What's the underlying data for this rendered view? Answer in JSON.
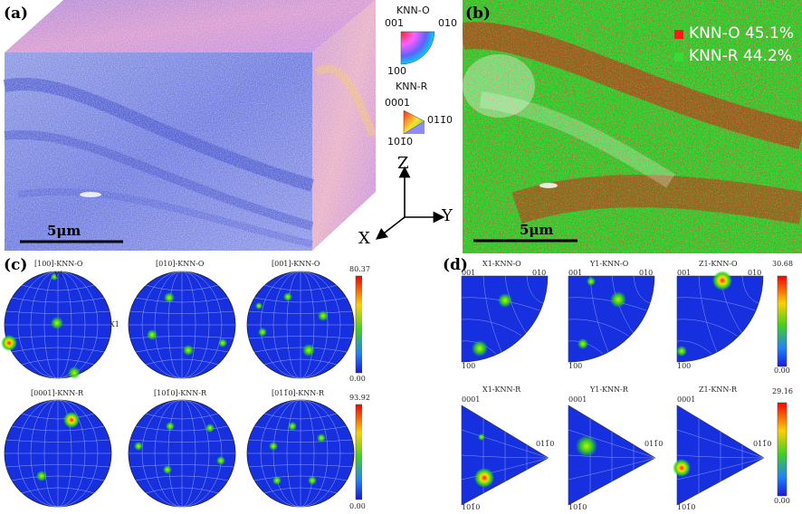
{
  "panel_labels": {
    "a": "(a)",
    "b": "(b)",
    "c": "(c)",
    "d": "(d)"
  },
  "panel_a": {
    "scale_bar": "5μm",
    "legend_o": {
      "title": "KNN-O",
      "corner_001": "001",
      "corner_010": "010",
      "corner_100": "100"
    },
    "legend_r": {
      "title": "KNN-R",
      "corner_0001": "0001",
      "corner_01": "011̄0",
      "corner_10": "101̄0"
    },
    "axes": {
      "z": "Z",
      "y": "Y",
      "x": "X"
    }
  },
  "panel_b": {
    "scale_bar": "5μm",
    "legend": [
      {
        "label": "KNN-O 45.1%",
        "color": "#ff1a1a"
      },
      {
        "label": "KNN-R 44.2%",
        "color": "#33dd33"
      }
    ]
  },
  "panel_c": {
    "row1": {
      "titles": [
        "[100]-KNN-O",
        "[010]-KNN-O",
        "[001]-KNN-O"
      ],
      "cb_max": "80.37",
      "cb_min": "0.00"
    },
    "row2": {
      "titles": [
        "[0001]-KNN-R",
        "[101̄0]-KNN-R",
        "[011̄0]-KNN-R"
      ],
      "cb_max": "93.92",
      "cb_min": "0.00"
    },
    "pole_labels": {
      "top": "Y1",
      "right": "X1"
    }
  },
  "panel_d": {
    "row1": {
      "titles": [
        "X1-KNN-O",
        "Y1-KNN-O",
        "Z1-KNN-O"
      ],
      "c1": "001",
      "c2": "010",
      "c3": "100",
      "cb_max": "30.68",
      "cb_min": "0.00"
    },
    "row2": {
      "titles": [
        "X1-KNN-R",
        "Y1-KNN-R",
        "Z1-KNN-R"
      ],
      "c1": "0001",
      "c2": "011̄0",
      "c3": "101̄0",
      "cb_max": "29.16",
      "cb_min": "0.00"
    }
  },
  "colors": {
    "ipf_blue": "#1f2fd6",
    "hot": "#ff2a00",
    "mid": "#35d21e"
  }
}
